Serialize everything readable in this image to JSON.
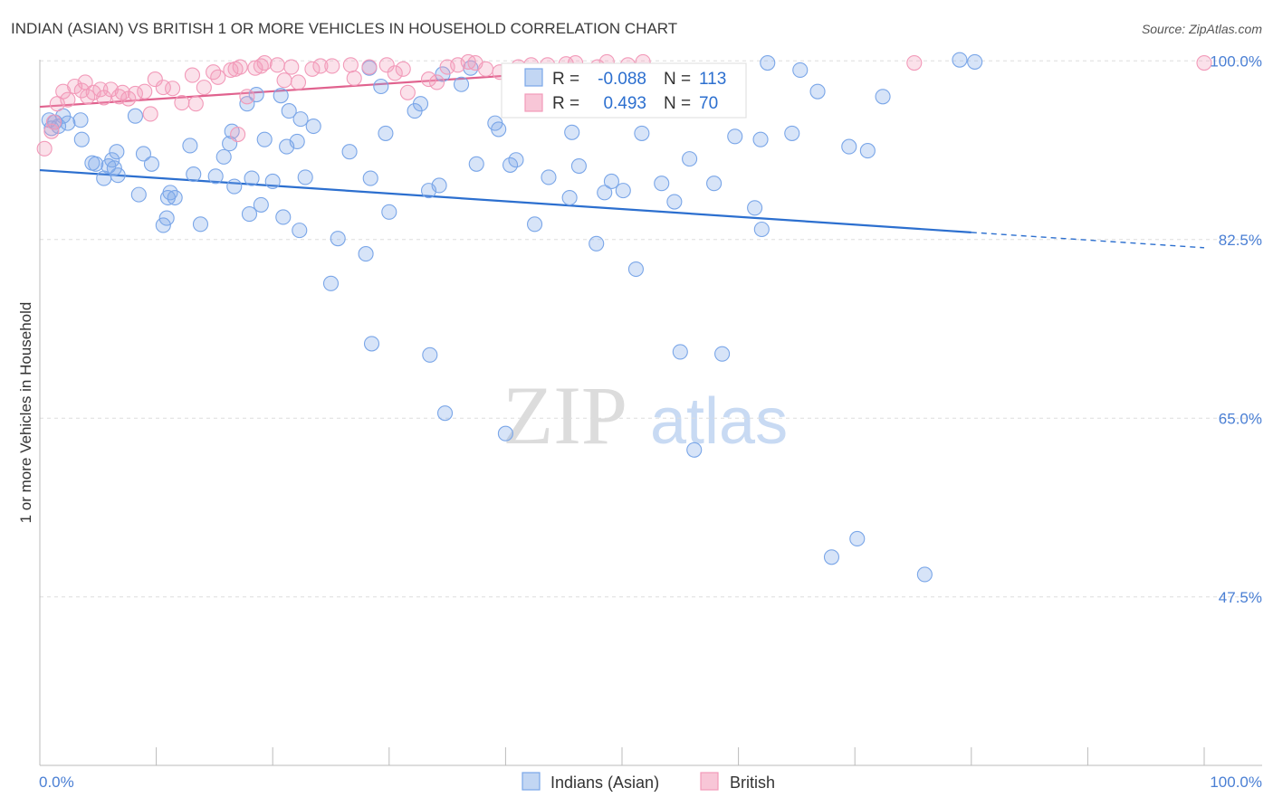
{
  "header": {
    "title": "INDIAN (ASIAN) VS BRITISH 1 OR MORE VEHICLES IN HOUSEHOLD CORRELATION CHART",
    "source": "Source: ZipAtlas.com"
  },
  "watermark": {
    "zip": "ZIP",
    "atlas": "atlas"
  },
  "stats": [
    {
      "r_label": "R =",
      "r_value": "-0.088",
      "n_label": "N =",
      "n_value": "113"
    },
    {
      "r_label": "R =",
      "r_value": "0.493",
      "n_label": "N =",
      "n_value": "70"
    }
  ],
  "colors": {
    "indian": "#7aa6e8",
    "indian_line": "#2c6fcf",
    "british": "#f29ab9",
    "british_line": "#e0628e",
    "tick": "#4a7fd4"
  },
  "chart_data": {
    "type": "scatter",
    "ylabel": "1 or more Vehicles in Household",
    "xlim": [
      0,
      100
    ],
    "ylim": [
      31,
      101
    ],
    "x_tick_labels": [
      "0.0%",
      "100.0%"
    ],
    "y_ticks": [
      {
        "value": 100.0,
        "label": "100.0%"
      },
      {
        "value": 82.5,
        "label": "82.5%"
      },
      {
        "value": 65.0,
        "label": "65.0%"
      },
      {
        "value": 47.5,
        "label": "47.5%"
      }
    ],
    "grid": true,
    "legend_position": "bottom",
    "series": [
      {
        "name": "Indians (Asian)",
        "trend": {
          "x0": 0,
          "y0": 89.3,
          "x1": 80,
          "y1": 83.2,
          "dashed_to_x": 100,
          "dashed_to_y": 81.7
        },
        "points": [
          [
            0.8,
            94.2
          ],
          [
            1.0,
            93.4
          ],
          [
            1.3,
            94.0
          ],
          [
            1.6,
            93.6
          ],
          [
            2.0,
            94.6
          ],
          [
            2.4,
            93.9
          ],
          [
            3.5,
            94.2
          ],
          [
            3.6,
            92.3
          ],
          [
            4.5,
            90.0
          ],
          [
            4.8,
            89.9
          ],
          [
            5.5,
            88.5
          ],
          [
            5.9,
            89.7
          ],
          [
            6.2,
            90.3
          ],
          [
            6.4,
            89.5
          ],
          [
            6.6,
            91.1
          ],
          [
            6.7,
            88.8
          ],
          [
            8.2,
            94.6
          ],
          [
            8.5,
            86.9
          ],
          [
            8.9,
            90.9
          ],
          [
            9.6,
            89.9
          ],
          [
            10.6,
            83.9
          ],
          [
            10.9,
            84.6
          ],
          [
            11.0,
            86.6
          ],
          [
            11.2,
            87.1
          ],
          [
            11.6,
            86.6
          ],
          [
            12.9,
            91.7
          ],
          [
            13.2,
            88.9
          ],
          [
            13.8,
            84.0
          ],
          [
            15.1,
            88.7
          ],
          [
            15.8,
            90.6
          ],
          [
            16.3,
            91.9
          ],
          [
            16.5,
            93.1
          ],
          [
            16.7,
            87.7
          ],
          [
            18.2,
            88.5
          ],
          [
            17.8,
            95.8
          ],
          [
            18.6,
            96.7
          ],
          [
            19.0,
            85.9
          ],
          [
            19.3,
            92.3
          ],
          [
            20.0,
            88.2
          ],
          [
            20.7,
            96.6
          ],
          [
            20.9,
            84.7
          ],
          [
            21.2,
            91.6
          ],
          [
            21.4,
            95.1
          ],
          [
            22.1,
            92.1
          ],
          [
            22.4,
            94.3
          ],
          [
            22.8,
            88.6
          ],
          [
            23.5,
            93.6
          ],
          [
            26.6,
            91.1
          ],
          [
            25.6,
            82.6
          ],
          [
            28.0,
            81.1
          ],
          [
            28.4,
            88.5
          ],
          [
            28.3,
            99.3
          ],
          [
            29.3,
            97.5
          ],
          [
            29.7,
            92.9
          ],
          [
            32.2,
            95.1
          ],
          [
            32.7,
            95.8
          ],
          [
            33.4,
            87.3
          ],
          [
            33.5,
            71.2
          ],
          [
            34.3,
            87.8
          ],
          [
            34.6,
            98.7
          ],
          [
            36.2,
            97.7
          ],
          [
            37.5,
            89.9
          ],
          [
            39.4,
            93.3
          ],
          [
            39.1,
            93.9
          ],
          [
            40.4,
            89.8
          ],
          [
            40.9,
            90.3
          ],
          [
            41.8,
            98.1
          ],
          [
            42.5,
            84.0
          ],
          [
            43.4,
            96.9
          ],
          [
            43.7,
            88.6
          ],
          [
            44.6,
            97.8
          ],
          [
            45.7,
            93.0
          ],
          [
            46.3,
            89.7
          ],
          [
            47.8,
            82.1
          ],
          [
            48.5,
            87.1
          ],
          [
            50.1,
            87.3
          ],
          [
            51.2,
            79.6
          ],
          [
            53.4,
            88.0
          ],
          [
            54.5,
            86.2
          ],
          [
            56.2,
            61.9
          ],
          [
            57.3,
            96.4
          ],
          [
            58.6,
            71.3
          ],
          [
            61.4,
            85.6
          ],
          [
            62.5,
            99.8
          ],
          [
            64.6,
            92.9
          ],
          [
            65.3,
            99.1
          ],
          [
            66.8,
            97.0
          ],
          [
            68.0,
            51.4
          ],
          [
            69.5,
            91.6
          ],
          [
            70.2,
            53.2
          ],
          [
            71.1,
            91.2
          ],
          [
            72.4,
            96.5
          ],
          [
            76.0,
            49.7
          ],
          [
            79.0,
            100.1
          ],
          [
            80.3,
            99.9
          ],
          [
            49.1,
            88.2
          ],
          [
            62.0,
            83.5
          ],
          [
            45.5,
            86.6
          ],
          [
            57.9,
            88.0
          ],
          [
            55.0,
            71.5
          ],
          [
            40.0,
            63.5
          ],
          [
            34.8,
            65.5
          ],
          [
            25.0,
            78.2
          ],
          [
            28.5,
            72.3
          ],
          [
            22.3,
            83.4
          ],
          [
            30.0,
            85.2
          ],
          [
            18.0,
            85.0
          ],
          [
            51.7,
            92.9
          ],
          [
            41.5,
            96.0
          ],
          [
            59.7,
            92.6
          ],
          [
            61.9,
            92.3
          ],
          [
            55.8,
            90.4
          ],
          [
            37.0,
            99.3
          ]
        ]
      },
      {
        "name": "British",
        "trend": {
          "x0": 0,
          "y0": 95.5,
          "x1": 46,
          "y1": 99.0
        },
        "points": [
          [
            0.4,
            91.4
          ],
          [
            1.0,
            93.1
          ],
          [
            1.2,
            94.0
          ],
          [
            1.5,
            95.8
          ],
          [
            2.0,
            97.0
          ],
          [
            2.4,
            96.2
          ],
          [
            3.0,
            97.5
          ],
          [
            3.6,
            97.1
          ],
          [
            3.9,
            97.9
          ],
          [
            4.1,
            96.5
          ],
          [
            4.6,
            96.9
          ],
          [
            5.2,
            97.2
          ],
          [
            5.5,
            96.4
          ],
          [
            6.1,
            97.2
          ],
          [
            6.8,
            96.5
          ],
          [
            7.1,
            96.9
          ],
          [
            7.6,
            96.3
          ],
          [
            8.2,
            96.8
          ],
          [
            9.0,
            97.0
          ],
          [
            9.5,
            94.8
          ],
          [
            9.9,
            98.2
          ],
          [
            10.6,
            97.4
          ],
          [
            11.4,
            97.3
          ],
          [
            12.2,
            95.9
          ],
          [
            13.1,
            98.6
          ],
          [
            13.4,
            95.8
          ],
          [
            14.1,
            97.4
          ],
          [
            14.9,
            98.9
          ],
          [
            15.3,
            98.4
          ],
          [
            16.4,
            99.1
          ],
          [
            16.8,
            99.2
          ],
          [
            17.2,
            99.4
          ],
          [
            17.8,
            96.5
          ],
          [
            18.5,
            99.3
          ],
          [
            19.0,
            99.5
          ],
          [
            19.3,
            99.8
          ],
          [
            20.4,
            99.6
          ],
          [
            21.0,
            98.1
          ],
          [
            21.6,
            99.4
          ],
          [
            22.2,
            97.9
          ],
          [
            23.4,
            99.2
          ],
          [
            24.1,
            99.5
          ],
          [
            25.1,
            99.5
          ],
          [
            26.7,
            99.6
          ],
          [
            27.0,
            98.3
          ],
          [
            28.3,
            99.4
          ],
          [
            29.8,
            99.6
          ],
          [
            30.5,
            98.8
          ],
          [
            31.2,
            99.2
          ],
          [
            31.6,
            96.9
          ],
          [
            33.4,
            98.2
          ],
          [
            34.1,
            97.9
          ],
          [
            35.0,
            99.4
          ],
          [
            35.9,
            99.6
          ],
          [
            36.8,
            99.9
          ],
          [
            37.4,
            99.8
          ],
          [
            38.3,
            99.2
          ],
          [
            39.5,
            98.9
          ],
          [
            41.1,
            99.4
          ],
          [
            42.2,
            99.6
          ],
          [
            43.6,
            99.6
          ],
          [
            45.2,
            99.7
          ],
          [
            46.0,
            99.8
          ],
          [
            47.9,
            99.4
          ],
          [
            48.7,
            99.9
          ],
          [
            50.5,
            99.6
          ],
          [
            51.8,
            99.9
          ],
          [
            75.1,
            99.8
          ],
          [
            100.0,
            99.8
          ],
          [
            17.0,
            92.8
          ]
        ]
      }
    ]
  },
  "legend": {
    "items": [
      {
        "label": "Indians (Asian)"
      },
      {
        "label": "British"
      }
    ]
  }
}
